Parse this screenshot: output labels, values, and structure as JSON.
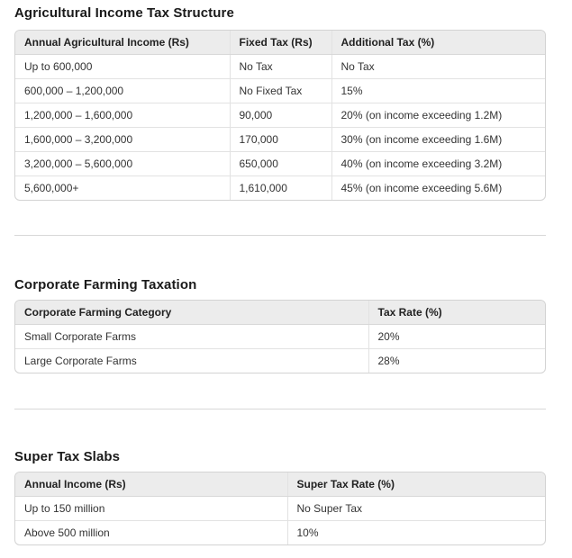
{
  "sections": [
    {
      "title": "Agricultural Income Tax Structure",
      "table": {
        "headers": [
          "Annual Agricultural Income (Rs)",
          "Fixed Tax (Rs)",
          "Additional Tax (%)"
        ],
        "rows": [
          [
            "Up to 600,000",
            "No Tax",
            "No Tax"
          ],
          [
            "600,000 – 1,200,000",
            "No Fixed Tax",
            "15%"
          ],
          [
            "1,200,000 – 1,600,000",
            "90,000",
            "20% (on income exceeding 1.2M)"
          ],
          [
            "1,600,000 – 3,200,000",
            "170,000",
            "30% (on income exceeding 1.6M)"
          ],
          [
            "3,200,000 – 5,600,000",
            "650,000",
            "40% (on income exceeding 3.2M)"
          ],
          [
            "5,600,000+",
            "1,610,000",
            "45% (on income exceeding 5.6M)"
          ]
        ]
      }
    },
    {
      "title": "Corporate Farming Taxation",
      "table": {
        "headers": [
          "Corporate Farming Category",
          "Tax Rate (%)"
        ],
        "rows": [
          [
            "Small Corporate Farms",
            "20%"
          ],
          [
            "Large Corporate Farms",
            "28%"
          ]
        ]
      }
    },
    {
      "title": "Super Tax Slabs",
      "table": {
        "headers": [
          "Annual Income (Rs)",
          "Super Tax Rate (%)"
        ],
        "rows": [
          [
            "Up to 150 million",
            "No Super Tax"
          ],
          [
            "Above 500 million",
            "10%"
          ]
        ]
      }
    }
  ],
  "colors": {
    "page_background": "#ffffff",
    "header_row_background": "#ececec",
    "table_border": "#d3d3d3",
    "cell_border": "#e2e2e2",
    "divider": "#d7d7d7",
    "title_text": "#1a1a1a",
    "cell_text": "#333333"
  }
}
